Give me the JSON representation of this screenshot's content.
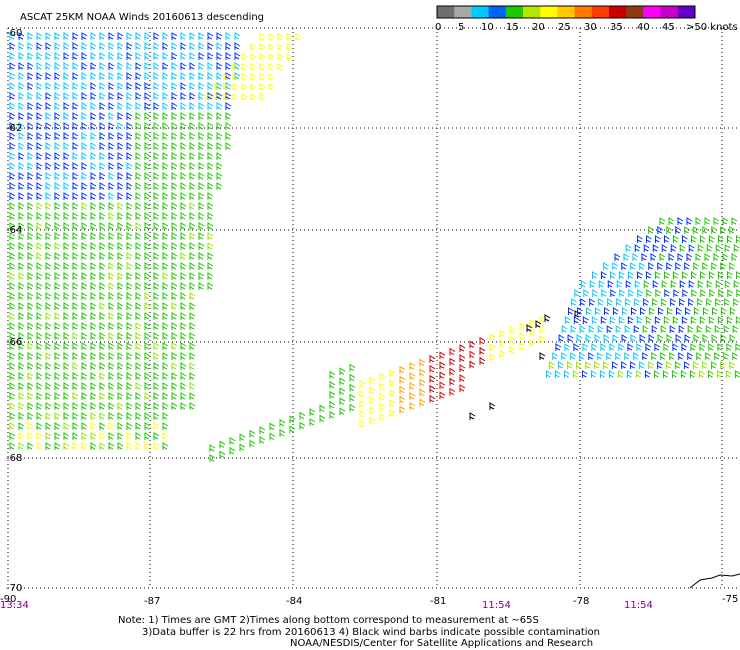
{
  "title": "ASCAT 25KM NOAA Winds 20160613 descending",
  "legend": {
    "colors": [
      "#6e6e6e",
      "#a8a8a8",
      "#00c8ff",
      "#0064ff",
      "#1ec800",
      "#b4e600",
      "#ffff00",
      "#ffc800",
      "#ff7800",
      "#ff3c00",
      "#c80000",
      "#8c3c14",
      "#ff00ff",
      "#c800c8",
      "#6400c8"
    ],
    "labels": [
      "0",
      "5",
      "10",
      "15",
      "20",
      "25",
      "30",
      "35",
      "40",
      "45",
      ">50 knots"
    ]
  },
  "axes": {
    "longitude_ticks": [
      "-90",
      "-87",
      "-84",
      "-81",
      "-78",
      "-75"
    ],
    "latitude_ticks": [
      "-60",
      "-62",
      "-64",
      "-66",
      "-68",
      "-70"
    ]
  },
  "swath_times": [
    "13:34",
    "11:54",
    "11:54"
  ],
  "notes": [
    "Note: 1) Times are GMT 2)Times along bottom correspond to measurement at ~65S",
    "3)Data buffer is 22 hrs from 20160613 4) Black wind barbs indicate possible contamination",
    "NOAA/NESDIS/Center for Satellite Applications and Research"
  ]
}
